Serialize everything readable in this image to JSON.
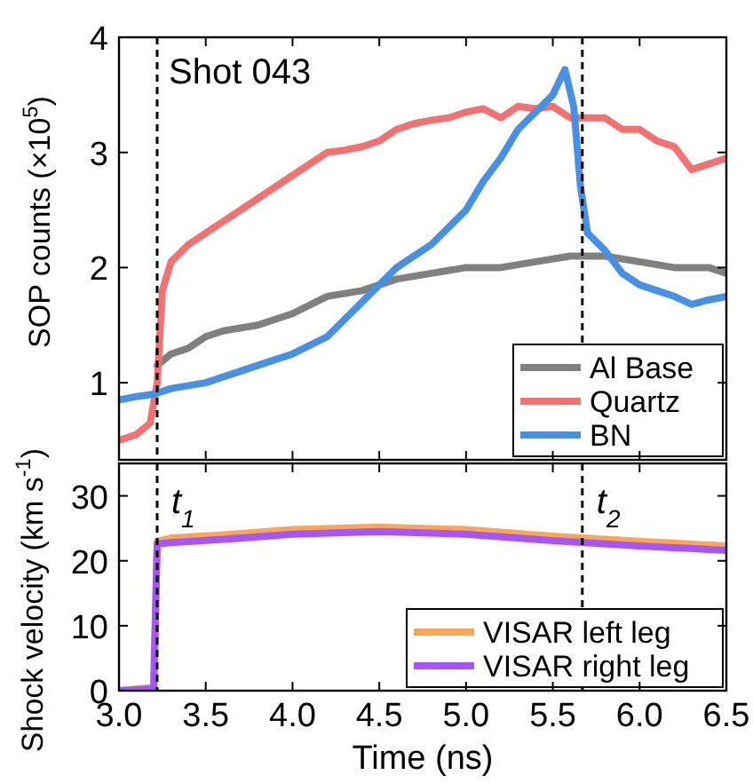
{
  "chart_data": [
    {
      "type": "line",
      "ylabel": "SOP counts (×10$^{5}$)",
      "xlim": [
        3.0,
        6.5
      ],
      "xticks": [
        {
          "value": 3.0,
          "label": null
        },
        {
          "value": 3.5,
          "label": null
        },
        {
          "value": 4.0,
          "label": null
        },
        {
          "value": 4.5,
          "label": null
        },
        {
          "value": 5.0,
          "label": null
        },
        {
          "value": 5.5,
          "label": null
        },
        {
          "value": 6.0,
          "label": null
        },
        {
          "value": 6.5,
          "label": null
        }
      ],
      "ylim": [
        0.33,
        4
      ],
      "yticks": [
        1,
        2,
        3,
        4
      ],
      "tick_labels": "y",
      "legend": "bottom right",
      "line_style": "solid",
      "annotations": [
        "Shot 043"
      ],
      "ref_lines": [
        {
          "axis": "x",
          "value": 3.22,
          "line_style": "dashed",
          "color": "#000000"
        },
        {
          "axis": "x",
          "value": 5.67,
          "line_style": "dashed",
          "color": "#000000"
        }
      ],
      "series": [
        {
          "name": "Al Base",
          "color": "#808080",
          "x": [
            3.22,
            3.3,
            3.4,
            3.5,
            3.6,
            3.8,
            4.0,
            4.2,
            4.4,
            4.6,
            4.8,
            5.0,
            5.2,
            5.4,
            5.6,
            5.8,
            6.0,
            6.2,
            6.4,
            6.5
          ],
          "values": [
            1.15,
            1.25,
            1.3,
            1.4,
            1.45,
            1.5,
            1.6,
            1.75,
            1.8,
            1.9,
            1.95,
            2.0,
            2.0,
            2.05,
            2.1,
            2.1,
            2.05,
            2.0,
            2.0,
            1.95
          ]
        },
        {
          "name": "Quartz",
          "color": "#f07272",
          "x": [
            3.0,
            3.1,
            3.18,
            3.22,
            3.25,
            3.3,
            3.4,
            3.5,
            3.6,
            3.7,
            3.8,
            3.9,
            4.0,
            4.1,
            4.2,
            4.3,
            4.4,
            4.5,
            4.6,
            4.7,
            4.8,
            4.9,
            5.0,
            5.1,
            5.2,
            5.3,
            5.4,
            5.5,
            5.6,
            5.7,
            5.8,
            5.9,
            6.0,
            6.1,
            6.2,
            6.3,
            6.4,
            6.5
          ],
          "values": [
            0.5,
            0.55,
            0.65,
            1.0,
            1.8,
            2.05,
            2.2,
            2.3,
            2.4,
            2.5,
            2.6,
            2.7,
            2.8,
            2.9,
            3.0,
            3.02,
            3.05,
            3.1,
            3.2,
            3.25,
            3.28,
            3.3,
            3.35,
            3.38,
            3.3,
            3.4,
            3.38,
            3.4,
            3.3,
            3.3,
            3.3,
            3.2,
            3.2,
            3.1,
            3.05,
            2.85,
            2.9,
            2.95
          ]
        },
        {
          "name": "BN",
          "color": "#4a90e2",
          "x": [
            3.0,
            3.1,
            3.2,
            3.3,
            3.5,
            3.7,
            3.9,
            4.0,
            4.2,
            4.3,
            4.4,
            4.5,
            4.6,
            4.7,
            4.8,
            4.9,
            5.0,
            5.1,
            5.2,
            5.3,
            5.4,
            5.5,
            5.57,
            5.62,
            5.66,
            5.7,
            5.8,
            5.9,
            6.0,
            6.1,
            6.2,
            6.3,
            6.4,
            6.5
          ],
          "values": [
            0.85,
            0.88,
            0.9,
            0.95,
            1.0,
            1.1,
            1.2,
            1.25,
            1.4,
            1.55,
            1.7,
            1.85,
            2.0,
            2.1,
            2.2,
            2.35,
            2.5,
            2.75,
            2.95,
            3.2,
            3.35,
            3.5,
            3.72,
            3.4,
            2.7,
            2.3,
            2.15,
            1.95,
            1.85,
            1.8,
            1.75,
            1.68,
            1.72,
            1.75
          ]
        }
      ]
    },
    {
      "type": "line",
      "xlabel": "Time (ns)",
      "ylabel": "Shock velocity (km s$^{-1}$)",
      "xlim": [
        3.0,
        6.5
      ],
      "xticks": [
        {
          "value": 3.0,
          "label": "3.0"
        },
        {
          "value": 3.5,
          "label": "3.5"
        },
        {
          "value": 4.0,
          "label": "4.0"
        },
        {
          "value": 4.5,
          "label": "4.5"
        },
        {
          "value": 5.0,
          "label": "5.0"
        },
        {
          "value": 5.5,
          "label": "5.5"
        },
        {
          "value": 6.0,
          "label": "6.0"
        },
        {
          "value": 6.5,
          "label": "6.5"
        }
      ],
      "ylim": [
        0,
        35
      ],
      "yticks": [
        0,
        10,
        20,
        30
      ],
      "legend": "bottom right",
      "line_style": "solid",
      "ref_lines": [
        {
          "axis": "x",
          "value": 3.22,
          "label": "t$_{1}$",
          "line_style": "dashed",
          "color": "#000000"
        },
        {
          "axis": "x",
          "value": 5.67,
          "label": "t$_{2}$",
          "line_style": "dashed",
          "color": "#000000"
        }
      ],
      "series": [
        {
          "name": "VISAR left leg",
          "color": "#f9a65a",
          "x": [
            3.0,
            3.2,
            3.22,
            3.3,
            3.6,
            4.0,
            4.5,
            5.0,
            5.5,
            6.0,
            6.5
          ],
          "values": [
            0,
            0.5,
            23,
            23.5,
            24,
            24.8,
            25.2,
            24.8,
            23.8,
            23,
            22.3
          ]
        },
        {
          "name": "VISAR right leg",
          "color": "#a855f7",
          "x": [
            3.0,
            3.2,
            3.22,
            3.3,
            3.6,
            4.0,
            4.5,
            5.0,
            5.5,
            6.0,
            6.5
          ],
          "values": [
            0,
            0.3,
            22.6,
            22.8,
            23.3,
            24.1,
            24.5,
            24.1,
            23.1,
            22.3,
            21.6
          ]
        }
      ]
    }
  ]
}
